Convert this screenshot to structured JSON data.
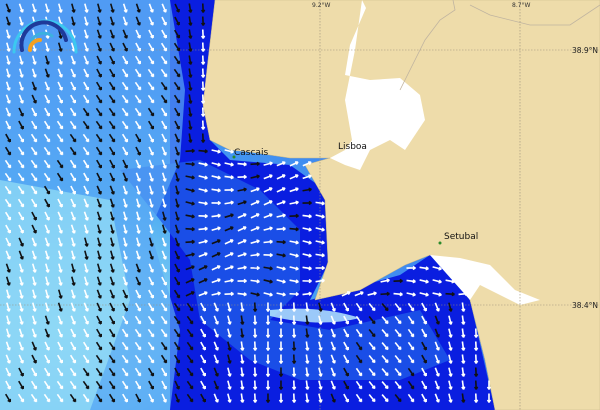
{
  "map": {
    "places": [
      {
        "name": "Cascais"
      },
      {
        "name": "Lisboa"
      },
      {
        "name": "Setubal"
      }
    ],
    "grid_labels": {
      "lon": [
        "9.2°W",
        "8.7°W"
      ],
      "lat": [
        "38.9°N",
        "38.4°N"
      ]
    },
    "colors": {
      "land": "#eedcaa",
      "deep_sea": "#0a1ee0",
      "mid_sea": "#3a8cf0",
      "shallow_sea": "#a8eef5",
      "estuary": "#ffffff"
    },
    "logo": "wave-forecast-logo"
  }
}
